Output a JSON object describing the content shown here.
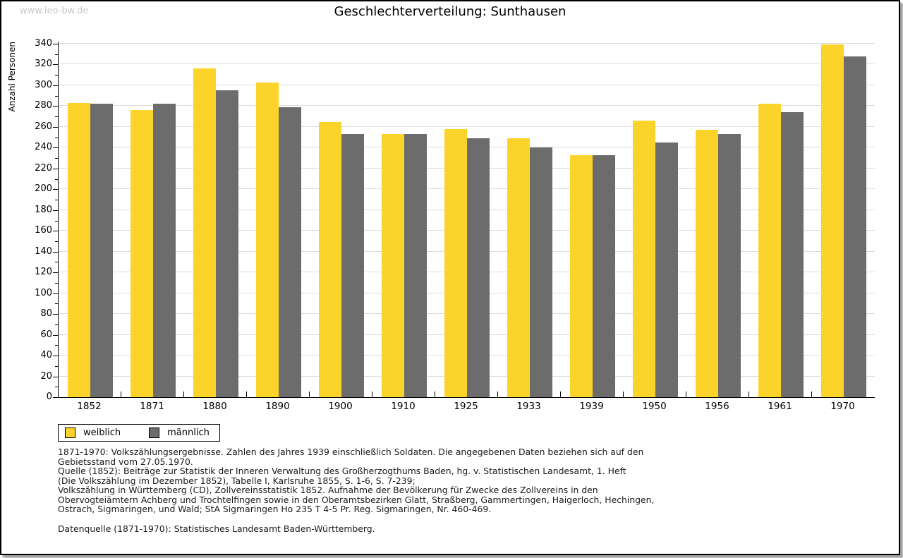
{
  "watermark": "www.leo-bw.de",
  "title": "Geschlechterverteilung: Sunthausen",
  "chart_data": {
    "type": "bar",
    "title": "Geschlechterverteilung: Sunthausen",
    "xlabel": "",
    "ylabel": "Anzahl Personen",
    "ylim": [
      0,
      340
    ],
    "ytick_major_step": 20,
    "ytick_minor_step": 10,
    "grid": true,
    "legend_position": "bottom-left",
    "categories": [
      "1852",
      "1871",
      "1880",
      "1890",
      "1900",
      "1910",
      "1925",
      "1933",
      "1939",
      "1950",
      "1956",
      "1961",
      "1970"
    ],
    "series": [
      {
        "name": "weiblich",
        "color": "#FCD32B",
        "values": [
          283,
          276,
          316,
          303,
          265,
          253,
          258,
          249,
          233,
          266,
          257,
          282,
          339
        ]
      },
      {
        "name": "männlich",
        "color": "#6C6C6C",
        "values": [
          282,
          282,
          295,
          279,
          253,
          253,
          249,
          240,
          233,
          245,
          253,
          274,
          328
        ]
      }
    ],
    "colors": {
      "gridline": "#dcdcdc",
      "axis": "#000000"
    }
  },
  "footnotes": {
    "lines": [
      "1871-1970: Volkszählungsergebnisse. Zahlen des Jahres 1939 einschließlich Soldaten. Die angegebenen Daten beziehen sich auf den",
      "Gebietsstand vom 27.05.1970.",
      "Quelle (1852): Beiträge zur Statistik der Inneren Verwaltung des Großherzogthums Baden, hg. v. Statistischen Landesamt, 1. Heft",
      "(Die Volkszählung im Dezember 1852), Tabelle I, Karlsruhe 1855, S. 1-6, S. 7-239;",
      "Volkszählung in Württemberg (CD), Zollvereinsstatistik 1852. Aufnahme der Bevölkerung für Zwecke des Zollvereins in den",
      "Obervogteiämtern Achberg und Trochtelfingen sowie in den Oberamtsbezirken Glatt, Straßberg, Gammertingen, Haigerloch, Hechingen,",
      "Ostrach, Sigmaringen, und Wald; StA Sigmaringen Ho 235 T 4-5 Pr. Reg. Sigmaringen, Nr. 460-469."
    ],
    "datasource": "Datenquelle (1871-1970): Statistisches Landesamt Baden-Württemberg."
  }
}
